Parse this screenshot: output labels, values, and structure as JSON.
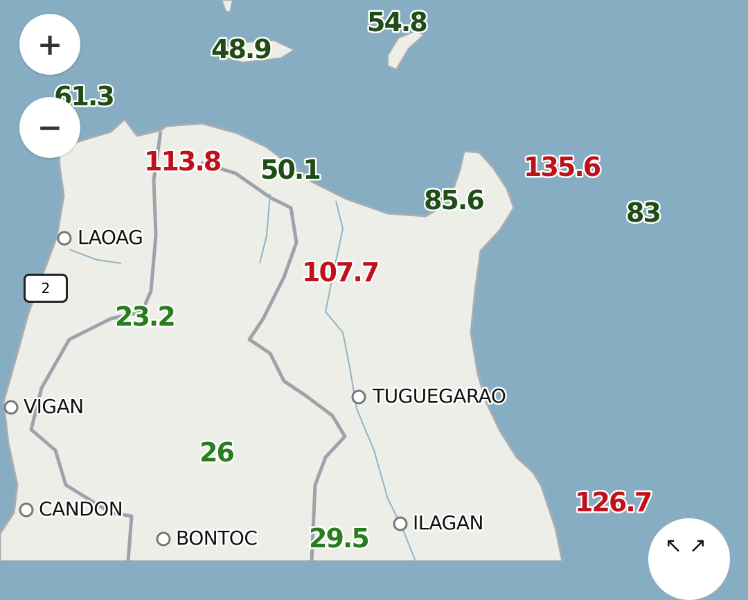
{
  "colors": {
    "sea": "#86adc2",
    "land": "#eeeee8",
    "high_value": "#c0101a",
    "low_value": "#1f4d15"
  },
  "controls": {
    "zoom_in": "+",
    "zoom_out": "−",
    "fullscreen": "↖↗"
  },
  "road_shield": "2",
  "cities": [
    "LAOAG",
    "VIGAN",
    "CANDON",
    "BONTOC",
    "TUGUEGARAO",
    "ILAGAN"
  ],
  "values": [
    "54.8",
    "48.9",
    "61.3",
    "113.8",
    "50.1",
    "135.6",
    "85.6",
    "83",
    "107.7",
    "23.2",
    "26",
    "29.5",
    "126.7"
  ]
}
